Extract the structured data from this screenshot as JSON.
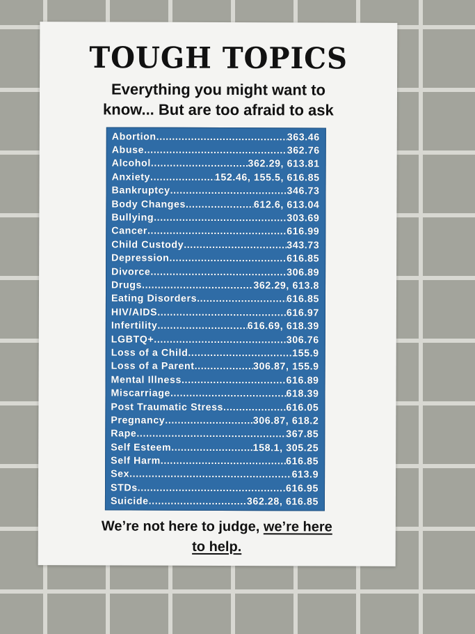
{
  "poster": {
    "title": "TOUGH TOPICS",
    "subtitle_line1": "Everything you might want to",
    "subtitle_line2": "know... But are too afraid to ask",
    "footer_plain": "We’re not here to judge, ",
    "footer_underlined_1": "we’re here",
    "footer_underlined_2": "to help.",
    "list_color": "#2f6ca6",
    "topics": [
      {
        "topic": "Abortion",
        "refs": "363.46"
      },
      {
        "topic": "Abuse",
        "refs": "362.76"
      },
      {
        "topic": "Alcohol",
        "refs": "362.29, 613.81"
      },
      {
        "topic": "Anxiety",
        "refs": "152.46, 155.5, 616.85"
      },
      {
        "topic": "Bankruptcy",
        "refs": "346.73"
      },
      {
        "topic": "Body Changes",
        "refs": "612.6, 613.04"
      },
      {
        "topic": "Bullying",
        "refs": "303.69"
      },
      {
        "topic": "Cancer",
        "refs": "616.99"
      },
      {
        "topic": "Child Custody",
        "refs": "343.73"
      },
      {
        "topic": "Depression",
        "refs": "616.85"
      },
      {
        "topic": "Divorce",
        "refs": "306.89"
      },
      {
        "topic": "Drugs",
        "refs": "362.29, 613.8"
      },
      {
        "topic": "Eating Disorders",
        "refs": "616.85"
      },
      {
        "topic": "HIV/AIDS",
        "refs": "616.97"
      },
      {
        "topic": "Infertility",
        "refs": "616.69, 618.39"
      },
      {
        "topic": "LGBTQ+",
        "refs": "306.76"
      },
      {
        "topic": "Loss of a Child",
        "refs": "155.9"
      },
      {
        "topic": "Loss of a Parent",
        "refs": "306.87, 155.9"
      },
      {
        "topic": "Mental Illness",
        "refs": "616.89"
      },
      {
        "topic": "Miscarriage",
        "refs": "618.39"
      },
      {
        "topic": "Post Traumatic Stress",
        "refs": "616.05"
      },
      {
        "topic": "Pregnancy",
        "refs": "306.87, 618.2"
      },
      {
        "topic": "Rape",
        "refs": "367.85"
      },
      {
        "topic": "Self Esteem",
        "refs": "158.1, 305.25"
      },
      {
        "topic": "Self Harm",
        "refs": "616.85"
      },
      {
        "topic": "Sex",
        "refs": "613.9"
      },
      {
        "topic": "STDs",
        "refs": "616.95"
      },
      {
        "topic": "Suicide",
        "refs": "362.28, 616.85"
      }
    ]
  }
}
